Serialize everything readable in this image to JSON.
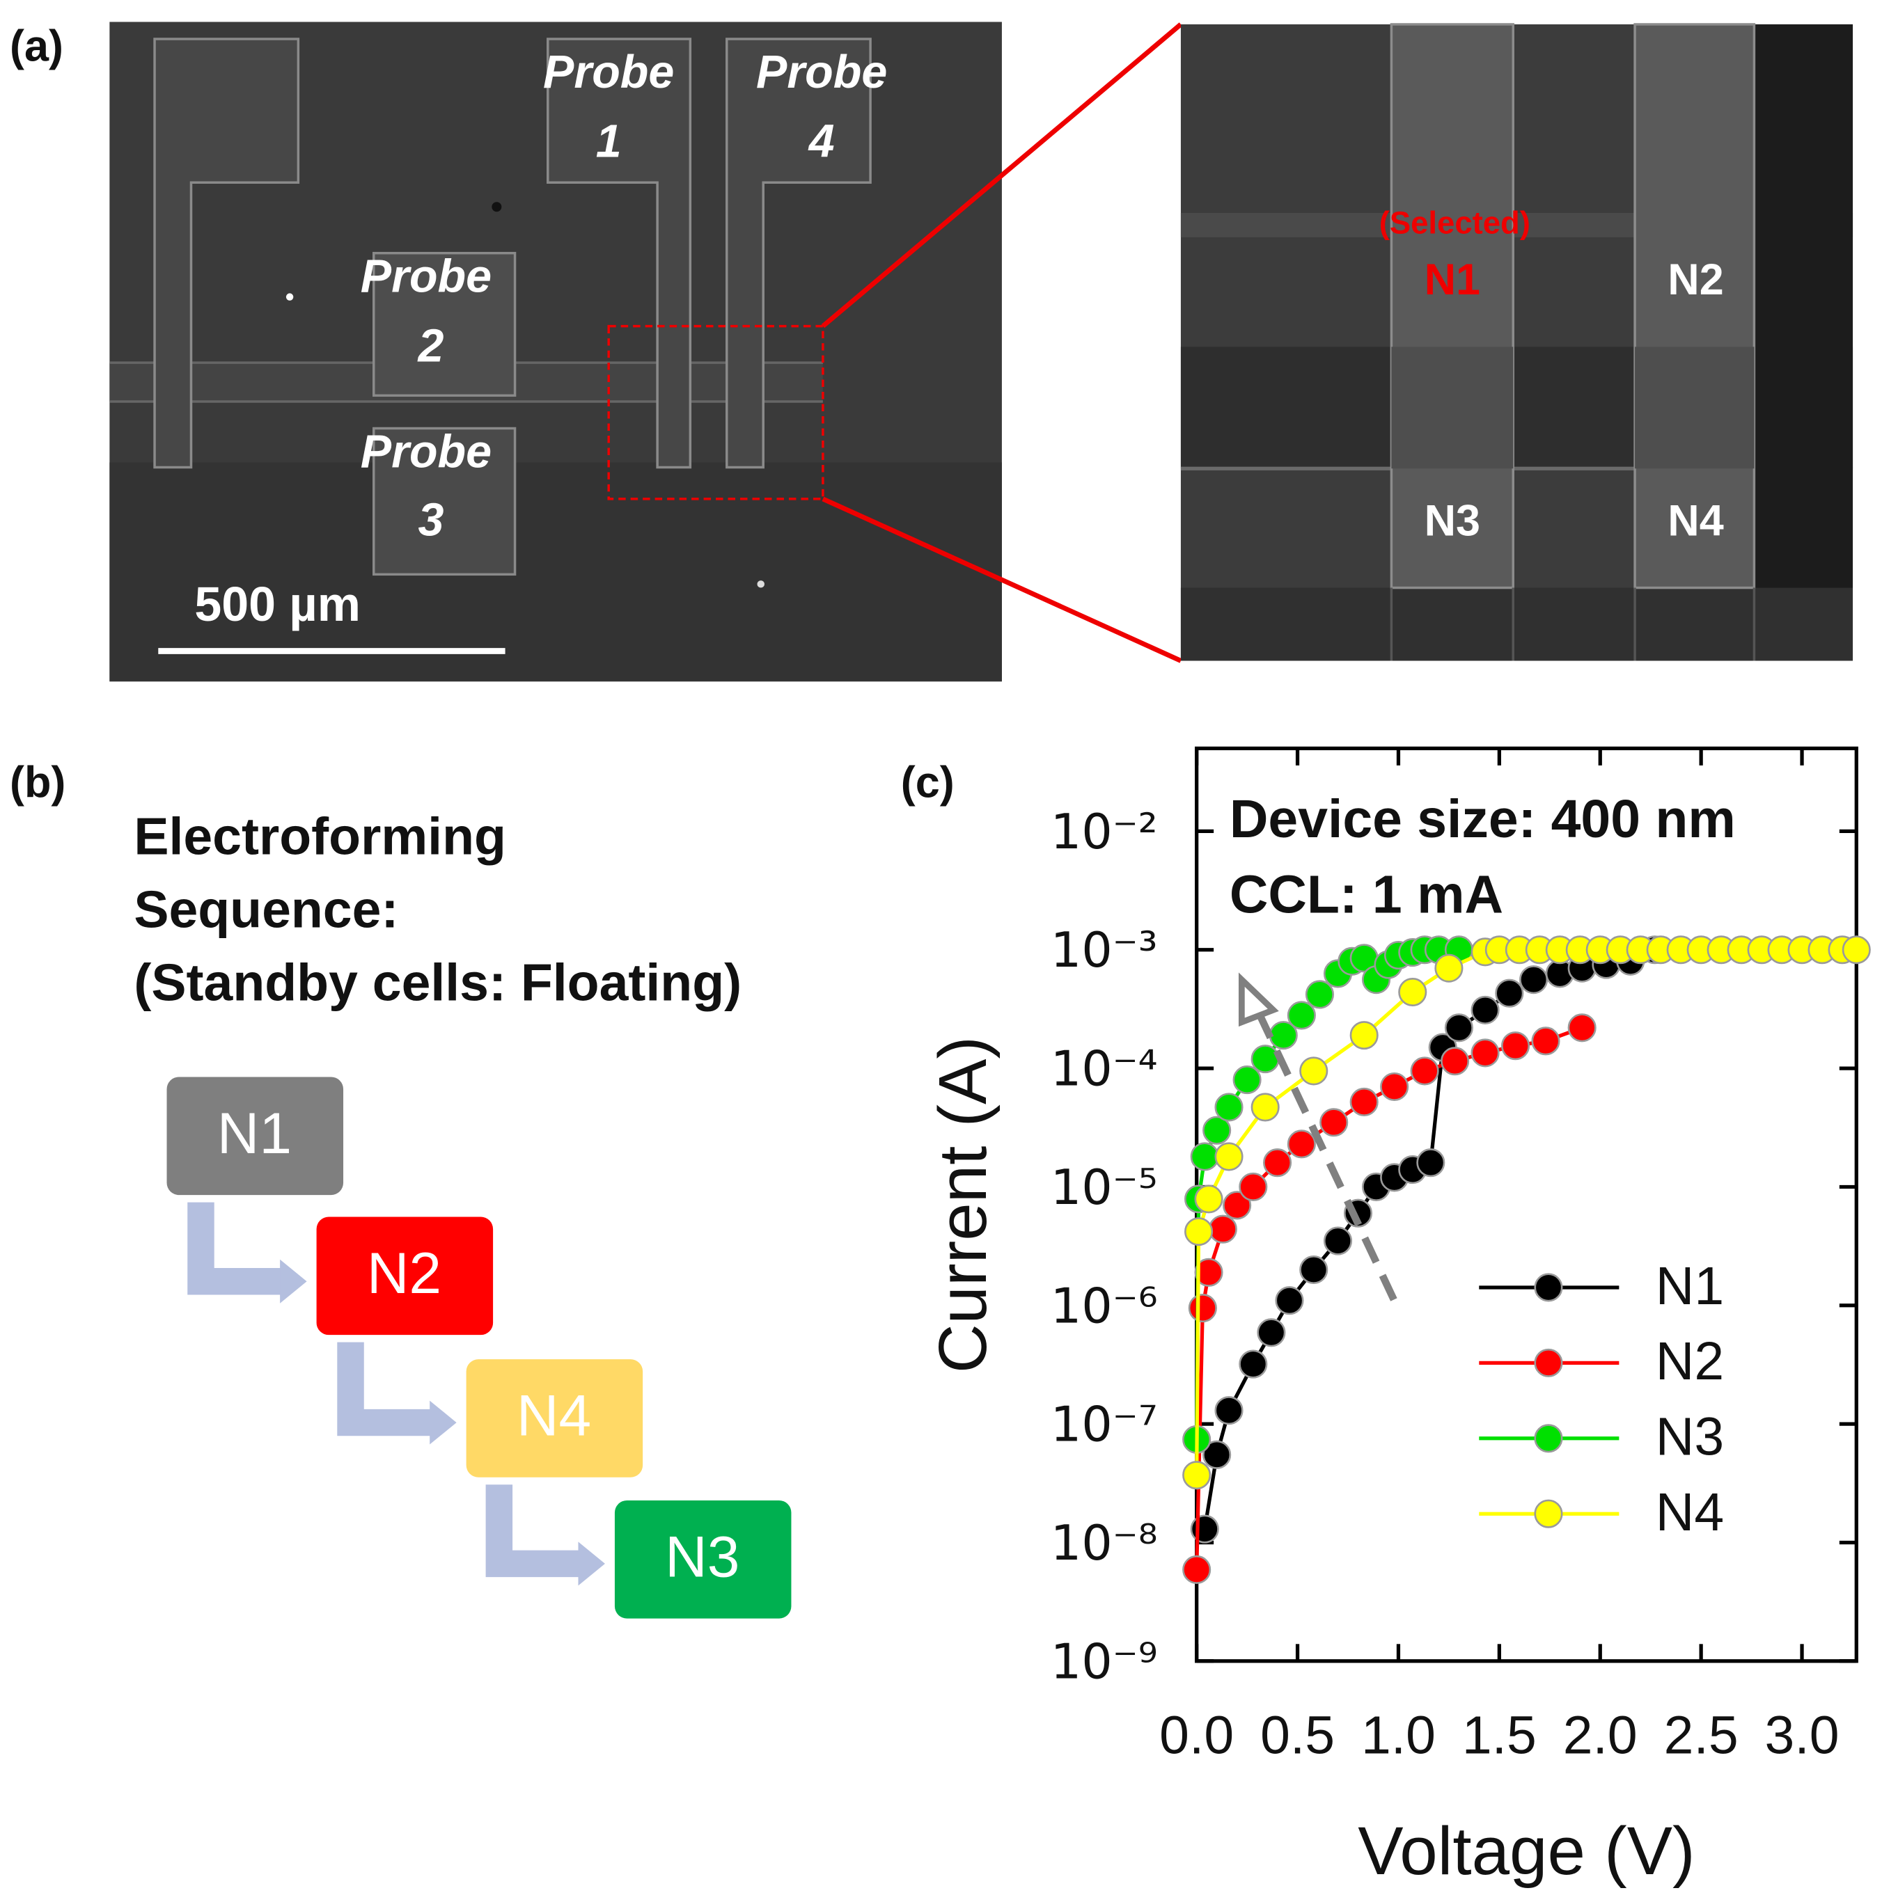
{
  "panel_labels": [
    "(a)",
    "(b)",
    "(c)"
  ],
  "panel_a": {
    "probes": [
      {
        "line1": "Probe",
        "line2": "1"
      },
      {
        "line1": "Probe",
        "line2": "4"
      },
      {
        "line1": "Probe",
        "line2": "2"
      },
      {
        "line1": "Probe",
        "line2": "3"
      }
    ],
    "scale_bar": "500 µm",
    "zoom": {
      "selected": "(Selected)",
      "cells": [
        "N1",
        "N2",
        "N3",
        "N4"
      ]
    }
  },
  "panel_b": {
    "title": [
      "Electroforming",
      "Sequence:",
      "(Standby cells: Floating)"
    ],
    "sequence": [
      "N1",
      "N2",
      "N4",
      "N3"
    ]
  },
  "chart_data": {
    "type": "line",
    "xlabel": "Voltage (V)",
    "ylabel": "Current (A)",
    "annotations": [
      "Device size: 400 nm",
      "CCL: 1 mA"
    ],
    "yscale": "log",
    "xlim": [
      0,
      3.27
    ],
    "ylim": [
      1e-09,
      0.05
    ],
    "xticks": [
      {
        "value": 0,
        "label": "0.0"
      },
      0.5,
      {
        "value": 1,
        "label": "1.0"
      },
      1.5,
      {
        "value": 2,
        "label": "2.0"
      },
      2.5,
      {
        "value": 3,
        "label": "3.0"
      }
    ],
    "yticks": [
      {
        "value": 1e-09,
        "label": "10⁻⁹"
      },
      {
        "value": 1e-08,
        "label": "10⁻⁸"
      },
      {
        "value": 1e-07,
        "label": "10⁻⁷"
      },
      {
        "value": 1e-06,
        "label": "10⁻⁶"
      },
      {
        "value": 1e-05,
        "label": "10⁻⁵"
      },
      {
        "value": 0.0001,
        "label": "10⁻⁴"
      },
      {
        "value": 0.001,
        "label": "10⁻³"
      },
      {
        "value": 0.01,
        "label": "10⁻²"
      }
    ],
    "legend": "lower right",
    "series": [
      {
        "name": "N1",
        "color": "#000000",
        "x": [
          0.04,
          0.1,
          0.16,
          0.28,
          0.37,
          0.46,
          0.58,
          0.7,
          0.8,
          0.89,
          0.98,
          1.07,
          1.16,
          1.22,
          1.3,
          1.43,
          1.55,
          1.67,
          1.8,
          1.91,
          2.03,
          2.15,
          2.27
        ],
        "values": [
          1.3e-08,
          5.5e-08,
          1.3e-07,
          3.2e-07,
          5.9e-07,
          1.1e-06,
          2e-06,
          3.5e-06,
          6e-06,
          1e-05,
          1.2e-05,
          1.4e-05,
          1.6e-05,
          0.00015,
          0.00022,
          0.00031,
          0.00043,
          0.00056,
          0.00063,
          0.0007,
          0.00075,
          0.0008,
          0.001
        ]
      },
      {
        "name": "N2",
        "color": "#ff0000",
        "x": [
          0,
          0.03,
          0.06,
          0.13,
          0.2,
          0.28,
          0.4,
          0.52,
          0.68,
          0.83,
          0.98,
          1.13,
          1.28,
          1.43,
          1.58,
          1.73,
          1.91
        ],
        "values": [
          5.9e-09,
          9.5e-07,
          1.9e-06,
          4.4e-06,
          7e-06,
          1e-05,
          1.6e-05,
          2.3e-05,
          3.5e-05,
          5.2e-05,
          7e-05,
          9.5e-05,
          0.000115,
          0.000135,
          0.000155,
          0.00017,
          0.00022
        ]
      },
      {
        "name": "N3",
        "color": "#00e000",
        "x": [
          0,
          0.01,
          0.04,
          0.1,
          0.16,
          0.25,
          0.34,
          0.43,
          0.52,
          0.61,
          0.7,
          0.77,
          0.83,
          0.89,
          0.95,
          1.0,
          1.07,
          1.13,
          1.2,
          1.3
        ],
        "values": [
          7.4e-08,
          7.9e-06,
          1.8e-05,
          3e-05,
          4.7e-05,
          8e-05,
          0.00012,
          0.00019,
          0.00028,
          0.00042,
          0.00063,
          0.0008,
          0.00085,
          0.00056,
          0.00075,
          0.0009,
          0.00095,
          0.001,
          0.001,
          0.001
        ]
      },
      {
        "name": "N4",
        "color": "#ffff00",
        "x": [
          0,
          0.01,
          0.06,
          0.16,
          0.34,
          0.58,
          0.83,
          1.07,
          1.25,
          1.43,
          1.5,
          1.6,
          1.7,
          1.8,
          1.9,
          2.0,
          2.1,
          2.2,
          2.3,
          2.4,
          2.5,
          2.6,
          2.7,
          2.8,
          2.9,
          3.0,
          3.1,
          3.2,
          3.27
        ],
        "values": [
          3.7e-08,
          4.2e-06,
          7.9e-06,
          1.8e-05,
          4.7e-05,
          9.5e-05,
          0.00019,
          0.00044,
          0.0007,
          0.00096,
          0.001,
          0.001,
          0.001,
          0.001,
          0.001,
          0.001,
          0.001,
          0.001,
          0.001,
          0.001,
          0.001,
          0.001,
          0.001,
          0.001,
          0.001,
          0.001,
          0.001,
          0.001,
          0.001
        ]
      }
    ]
  }
}
